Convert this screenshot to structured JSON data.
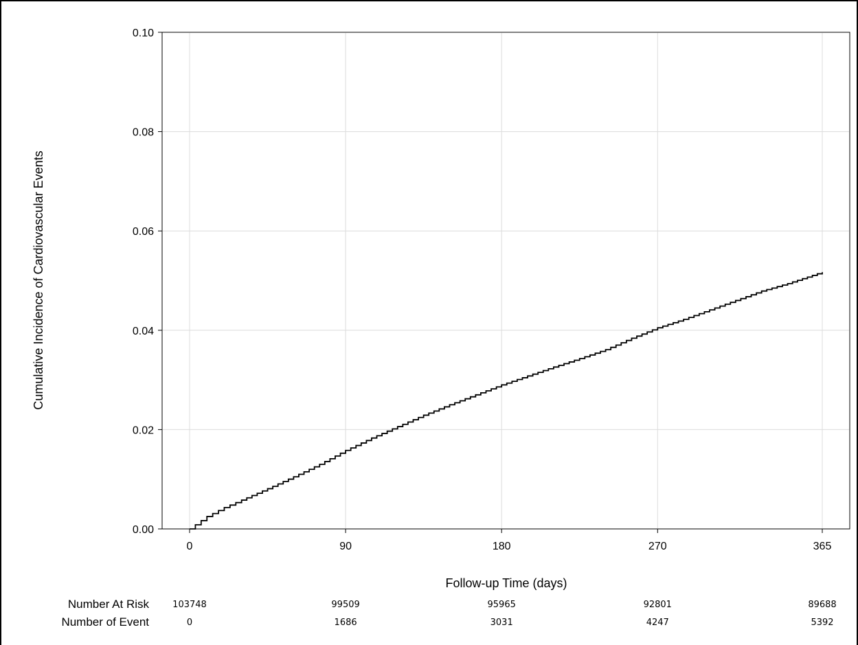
{
  "chart_data": {
    "type": "line",
    "title": "",
    "xlabel": "Follow-up Time (days)",
    "ylabel": "Cumulative Incidence of Cardiovascular Events",
    "xlim": [
      0,
      365
    ],
    "ylim": [
      0,
      0.1
    ],
    "x_ticks": [
      0,
      90,
      180,
      270,
      365
    ],
    "x_tick_labels": [
      "0",
      "90",
      "180",
      "270",
      "365"
    ],
    "y_ticks": [
      0,
      0.02,
      0.04,
      0.06,
      0.08,
      0.1
    ],
    "y_tick_labels": [
      "0.00",
      "0.02",
      "0.04",
      "0.06",
      "0.08",
      "0.10"
    ],
    "grid": true,
    "line_color": "#000000",
    "grid_color": "#dcdcdc",
    "series": [
      {
        "x": [
          0,
          10,
          20,
          30,
          45,
          60,
          75,
          90,
          105,
          120,
          135,
          150,
          165,
          180,
          195,
          210,
          225,
          240,
          255,
          270,
          285,
          300,
          315,
          330,
          345,
          365
        ],
        "y": [
          0,
          0.0025,
          0.0043,
          0.0058,
          0.0081,
          0.0105,
          0.013,
          0.0158,
          0.0183,
          0.0206,
          0.0229,
          0.025,
          0.027,
          0.029,
          0.0308,
          0.0326,
          0.0343,
          0.0361,
          0.0384,
          0.0405,
          0.0422,
          0.0441,
          0.046,
          0.0479,
          0.0494,
          0.0517
        ]
      }
    ],
    "risk_table": {
      "rows": [
        {
          "label": "Number At Risk",
          "values": [
            "103748",
            "99509",
            "95965",
            "92801",
            "89688"
          ]
        },
        {
          "label": "Number of Event",
          "values": [
            "0",
            "1686",
            "3031",
            "4247",
            "5392"
          ]
        }
      ]
    }
  }
}
